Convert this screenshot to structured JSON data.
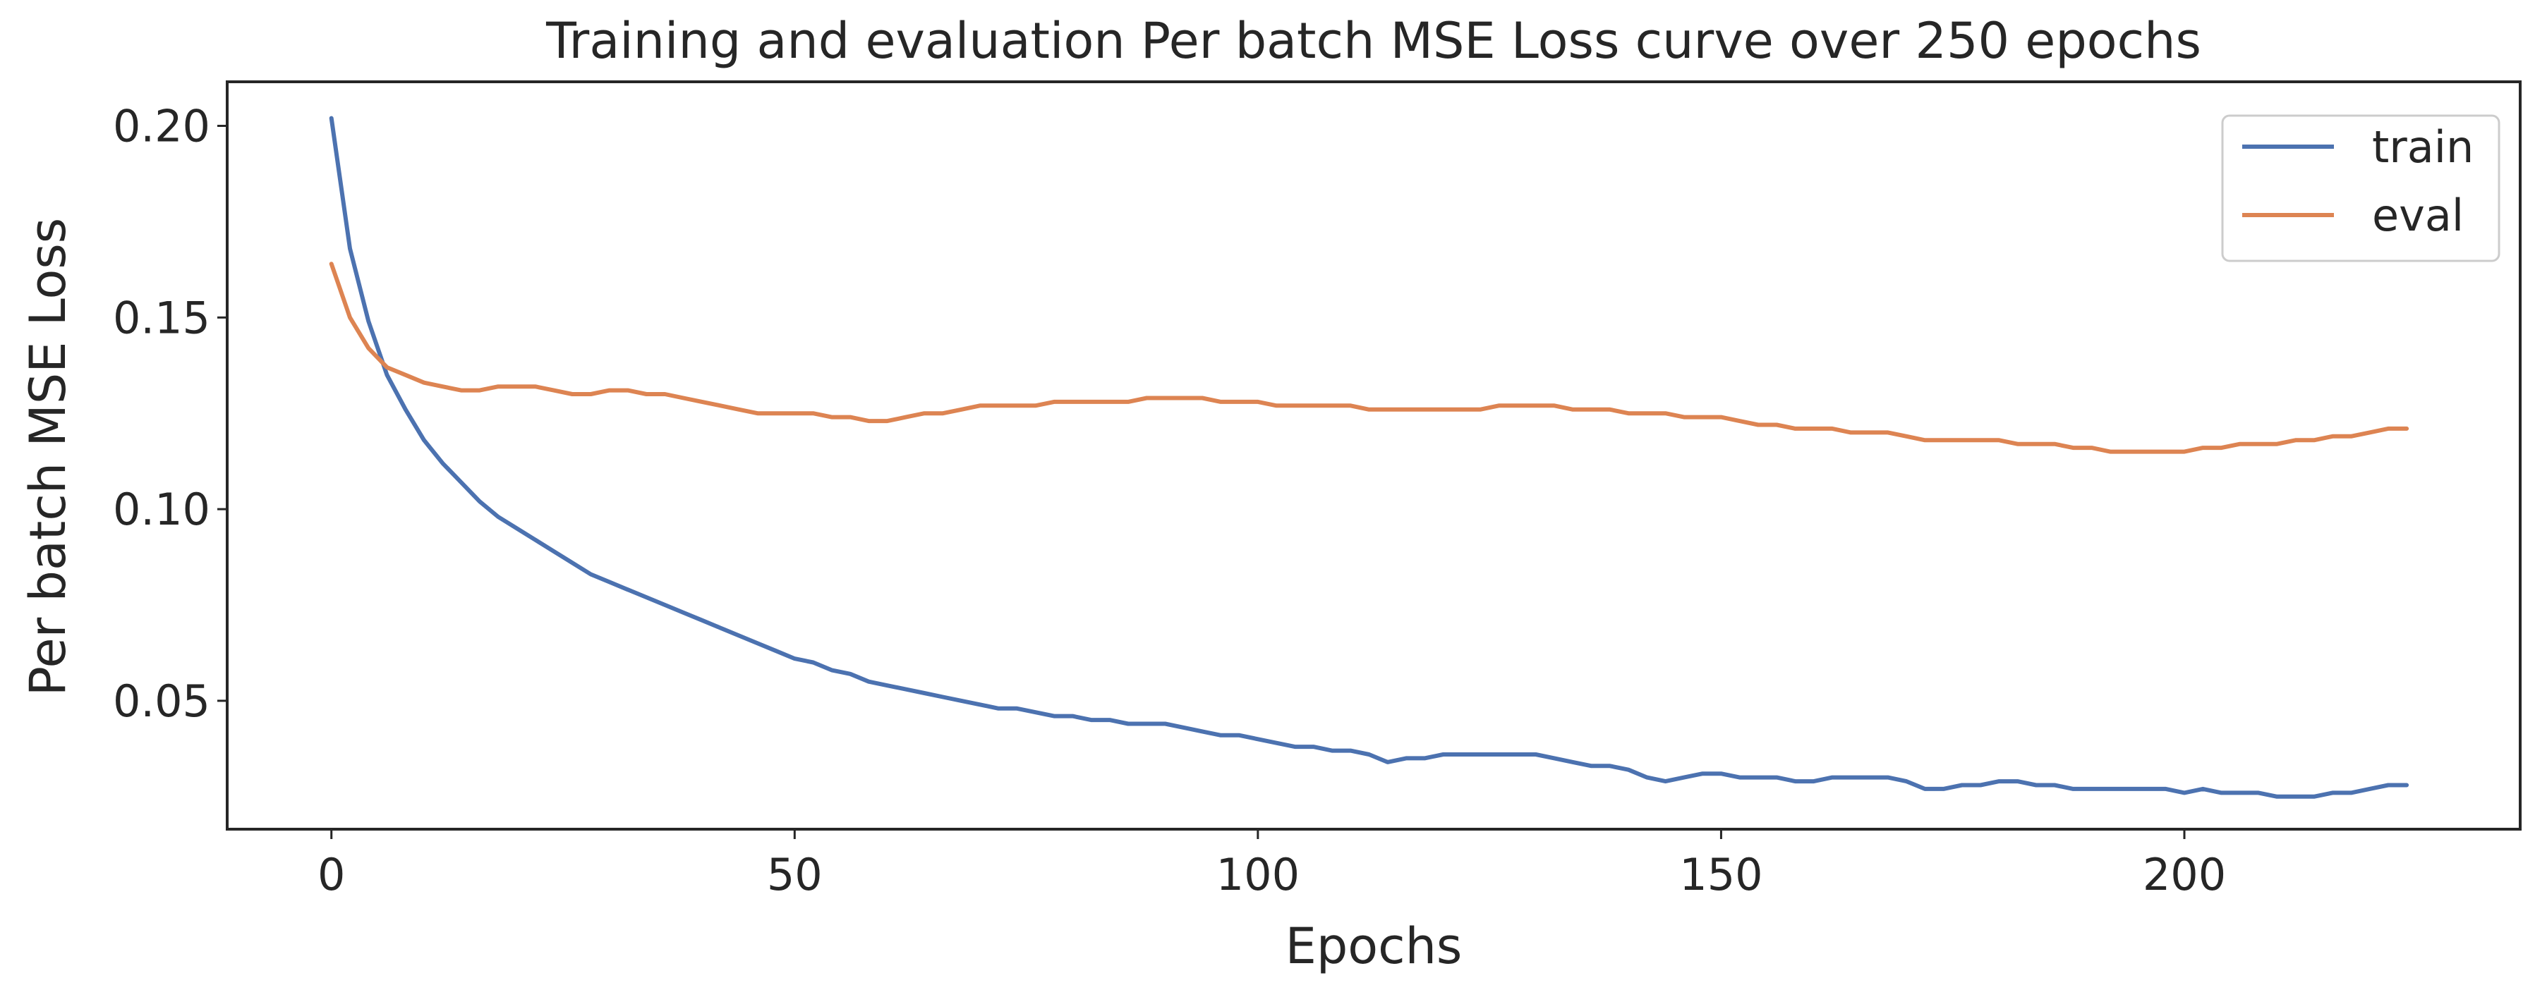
{
  "chart_data": {
    "type": "line",
    "title": "Training and evaluation Per batch MSE Loss curve over 250 epochs",
    "xlabel": "Epochs",
    "ylabel": "Per batch MSE Loss",
    "xlim": [
      -11.25,
      236.25
    ],
    "ylim": [
      0.0165,
      0.2115
    ],
    "xticks": [
      0,
      50,
      100,
      150,
      200
    ],
    "xtick_labels": [
      "0",
      "50",
      "100",
      "150",
      "200"
    ],
    "yticks": [
      0.05,
      0.1,
      0.15,
      0.2
    ],
    "ytick_labels": [
      "0.05",
      "0.10",
      "0.15",
      "0.20"
    ],
    "grid": false,
    "legend_position": "top-right",
    "x": [
      0,
      2,
      4,
      6,
      8,
      10,
      12,
      14,
      16,
      18,
      20,
      22,
      24,
      26,
      28,
      30,
      32,
      34,
      36,
      38,
      40,
      42,
      44,
      46,
      48,
      50,
      52,
      54,
      56,
      58,
      60,
      62,
      64,
      66,
      68,
      70,
      72,
      74,
      76,
      78,
      80,
      82,
      84,
      86,
      88,
      90,
      92,
      94,
      96,
      98,
      100,
      102,
      104,
      106,
      108,
      110,
      112,
      114,
      116,
      118,
      120,
      122,
      124,
      126,
      128,
      130,
      132,
      134,
      136,
      138,
      140,
      142,
      144,
      146,
      148,
      150,
      152,
      154,
      156,
      158,
      160,
      162,
      164,
      166,
      168,
      170,
      172,
      174,
      176,
      178,
      180,
      182,
      184,
      186,
      188,
      190,
      192,
      194,
      196,
      198,
      200,
      202,
      204,
      206,
      208,
      210,
      212,
      214,
      216,
      218,
      220,
      222,
      224
    ],
    "series": [
      {
        "name": "train",
        "color": "#4c72b0",
        "values": [
          0.202,
          0.168,
          0.149,
          0.135,
          0.126,
          0.118,
          0.112,
          0.107,
          0.102,
          0.098,
          0.095,
          0.092,
          0.089,
          0.086,
          0.083,
          0.081,
          0.079,
          0.077,
          0.075,
          0.073,
          0.071,
          0.069,
          0.067,
          0.065,
          0.063,
          0.061,
          0.06,
          0.058,
          0.057,
          0.055,
          0.054,
          0.053,
          0.052,
          0.051,
          0.05,
          0.049,
          0.048,
          0.048,
          0.047,
          0.046,
          0.046,
          0.045,
          0.045,
          0.044,
          0.044,
          0.044,
          0.043,
          0.042,
          0.041,
          0.041,
          0.04,
          0.039,
          0.038,
          0.038,
          0.037,
          0.037,
          0.036,
          0.034,
          0.035,
          0.035,
          0.036,
          0.036,
          0.036,
          0.036,
          0.036,
          0.036,
          0.035,
          0.034,
          0.033,
          0.033,
          0.032,
          0.03,
          0.029,
          0.03,
          0.031,
          0.031,
          0.03,
          0.03,
          0.03,
          0.029,
          0.029,
          0.03,
          0.03,
          0.03,
          0.03,
          0.029,
          0.027,
          0.027,
          0.028,
          0.028,
          0.029,
          0.029,
          0.028,
          0.028,
          0.027,
          0.027,
          0.027,
          0.027,
          0.027,
          0.027,
          0.026,
          0.027,
          0.026,
          0.026,
          0.026,
          0.025,
          0.025,
          0.025,
          0.026,
          0.026,
          0.027,
          0.028,
          0.028
        ]
      },
      {
        "name": "eval",
        "color": "#dd8452",
        "values": [
          0.164,
          0.15,
          0.142,
          0.137,
          0.135,
          0.133,
          0.132,
          0.131,
          0.131,
          0.132,
          0.132,
          0.132,
          0.131,
          0.13,
          0.13,
          0.131,
          0.131,
          0.13,
          0.13,
          0.129,
          0.128,
          0.127,
          0.126,
          0.125,
          0.125,
          0.125,
          0.125,
          0.124,
          0.124,
          0.123,
          0.123,
          0.124,
          0.125,
          0.125,
          0.126,
          0.127,
          0.127,
          0.127,
          0.127,
          0.128,
          0.128,
          0.128,
          0.128,
          0.128,
          0.129,
          0.129,
          0.129,
          0.129,
          0.128,
          0.128,
          0.128,
          0.127,
          0.127,
          0.127,
          0.127,
          0.127,
          0.126,
          0.126,
          0.126,
          0.126,
          0.126,
          0.126,
          0.126,
          0.127,
          0.127,
          0.127,
          0.127,
          0.126,
          0.126,
          0.126,
          0.125,
          0.125,
          0.125,
          0.124,
          0.124,
          0.124,
          0.123,
          0.122,
          0.122,
          0.121,
          0.121,
          0.121,
          0.12,
          0.12,
          0.12,
          0.119,
          0.118,
          0.118,
          0.118,
          0.118,
          0.118,
          0.117,
          0.117,
          0.117,
          0.116,
          0.116,
          0.115,
          0.115,
          0.115,
          0.115,
          0.115,
          0.116,
          0.116,
          0.117,
          0.117,
          0.117,
          0.118,
          0.118,
          0.119,
          0.119,
          0.12,
          0.121,
          0.121
        ]
      }
    ]
  }
}
